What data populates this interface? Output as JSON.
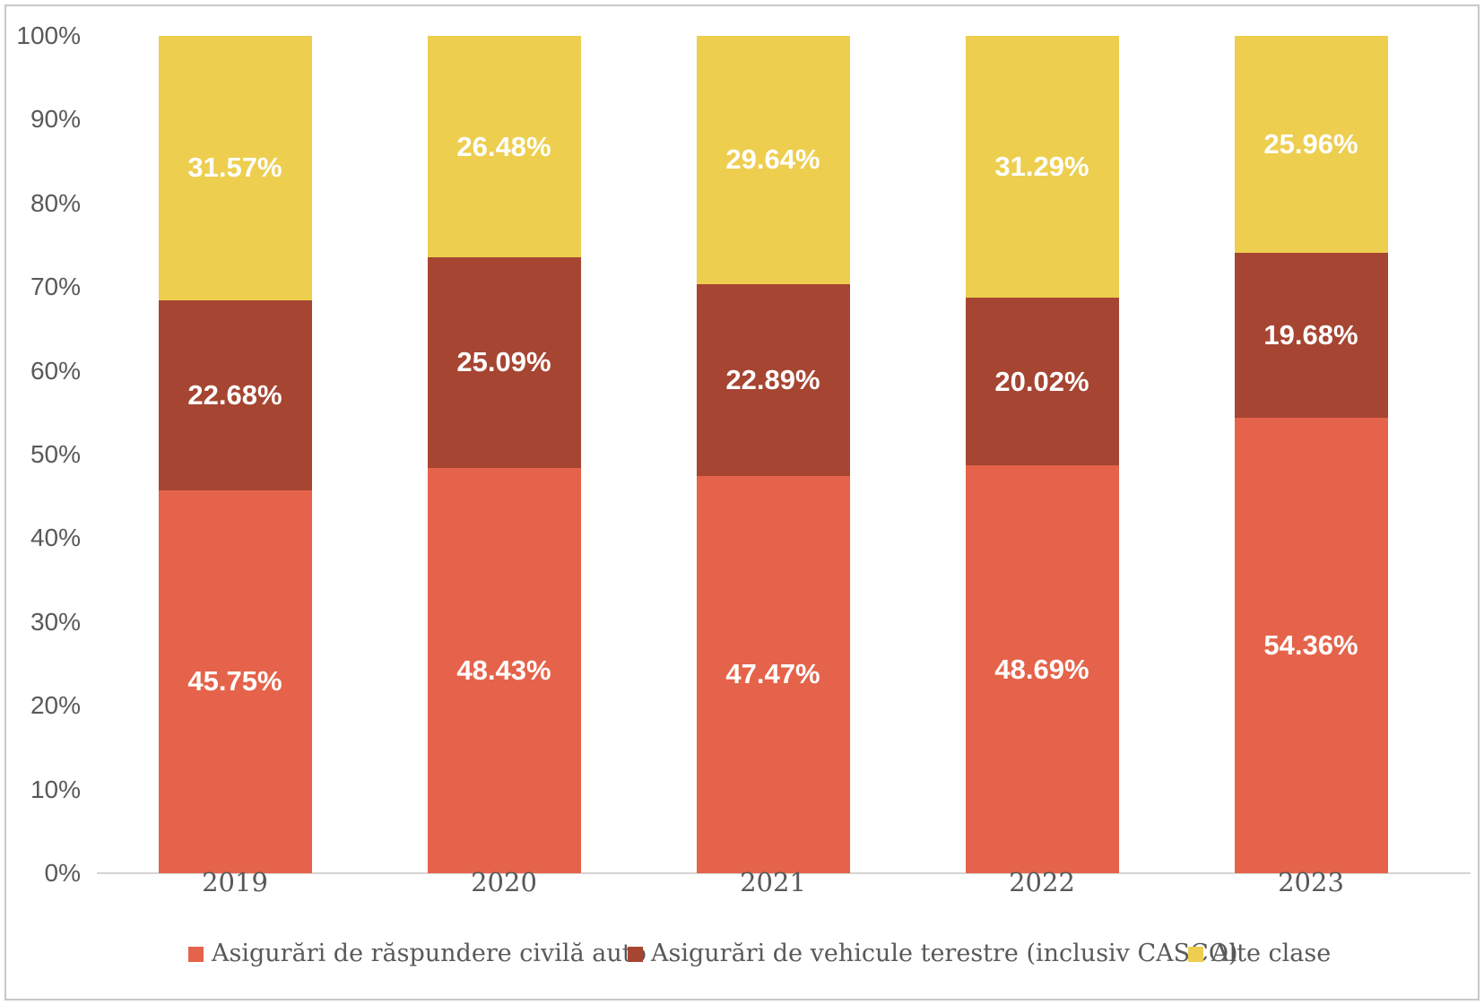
{
  "chart_data": {
    "type": "bar",
    "subtype": "stacked-100-percent-column",
    "title": "",
    "xlabel": "",
    "ylabel": "",
    "categories": [
      "2019",
      "2020",
      "2021",
      "2022",
      "2023"
    ],
    "series": [
      {
        "name": "Asigurări de răspundere civilă auto",
        "color": "#e5634a",
        "values": [
          45.75,
          48.43,
          47.47,
          48.69,
          54.36
        ],
        "labels": [
          "45.75%",
          "48.43%",
          "47.47%",
          "48.69%",
          "54.36%"
        ]
      },
      {
        "name": "Asigurări de vehicule terestre (inclusiv CASCO)",
        "color": "#a64532",
        "values": [
          22.68,
          25.09,
          22.89,
          20.02,
          19.68
        ],
        "labels": [
          "22.68%",
          "25.09%",
          "22.89%",
          "20.02%",
          "19.68%"
        ]
      },
      {
        "name": "Alte clase",
        "color": "#edce4f",
        "values": [
          31.57,
          26.48,
          29.64,
          31.29,
          25.96
        ],
        "labels": [
          "31.57%",
          "26.48%",
          "29.64%",
          "31.29%",
          "25.96%"
        ]
      }
    ],
    "y_axis": {
      "min": 0,
      "max": 100,
      "tick_step": 10,
      "tick_labels": [
        "0%",
        "10%",
        "20%",
        "30%",
        "40%",
        "50%",
        "60%",
        "70%",
        "80%",
        "90%",
        "100%"
      ]
    },
    "grid": "off",
    "legend_position": "bottom",
    "data_label_color": "#ffffff",
    "axis_text_color": "#595959",
    "axis_line_color": "#d6d4d2",
    "frame_border_color": "#c9c7c5"
  }
}
